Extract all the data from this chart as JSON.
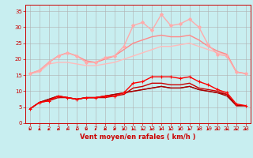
{
  "background_color": "#c8eef0",
  "grid_color": "#b0b0b0",
  "xlabel": "Vent moyen/en rafales ( km/h )",
  "xlabel_color": "#cc0000",
  "xlabel_fontsize": 6.0,
  "tick_color": "#cc0000",
  "tick_fontsize": 5.0,
  "ylim": [
    0,
    37
  ],
  "xlim": [
    -0.5,
    23.5
  ],
  "yticks": [
    0,
    5,
    10,
    15,
    20,
    25,
    30,
    35
  ],
  "xticks": [
    0,
    1,
    2,
    3,
    4,
    5,
    6,
    7,
    8,
    9,
    10,
    11,
    12,
    13,
    14,
    15,
    16,
    17,
    18,
    19,
    20,
    21,
    22,
    23
  ],
  "x": [
    0,
    1,
    2,
    3,
    4,
    5,
    6,
    7,
    8,
    9,
    10,
    11,
    12,
    13,
    14,
    15,
    16,
    17,
    18,
    19,
    20,
    21,
    22,
    23
  ],
  "series": [
    {
      "y": [
        15.5,
        16.0,
        18.5,
        19.0,
        19.0,
        18.5,
        18.0,
        18.0,
        18.5,
        19.0,
        20.0,
        21.0,
        22.0,
        23.0,
        24.0,
        24.0,
        24.5,
        25.0,
        24.0,
        23.0,
        22.0,
        21.5,
        16.0,
        15.5
      ],
      "color": "#ffbbbb",
      "lw": 1.0,
      "marker": null,
      "zorder": 2
    },
    {
      "y": [
        15.5,
        16.5,
        19.0,
        21.0,
        22.0,
        21.0,
        19.0,
        19.0,
        20.5,
        21.0,
        24.0,
        30.5,
        31.5,
        29.0,
        34.0,
        30.5,
        31.0,
        32.5,
        30.0,
        24.5,
        21.5,
        21.0,
        16.0,
        15.5
      ],
      "color": "#ffaaaa",
      "lw": 1.0,
      "marker": "D",
      "markersize": 2.0,
      "zorder": 3
    },
    {
      "y": [
        15.5,
        16.5,
        19.0,
        21.0,
        22.0,
        21.0,
        19.5,
        19.0,
        20.0,
        21.0,
        23.0,
        25.0,
        26.0,
        27.0,
        27.5,
        27.0,
        27.0,
        27.5,
        26.0,
        24.0,
        22.5,
        21.5,
        16.0,
        15.5
      ],
      "color": "#ff8888",
      "lw": 1.0,
      "marker": null,
      "zorder": 2
    },
    {
      "y": [
        4.5,
        6.5,
        7.0,
        8.5,
        8.0,
        7.5,
        8.0,
        8.0,
        8.5,
        8.5,
        9.5,
        12.5,
        13.0,
        14.5,
        14.5,
        14.5,
        14.0,
        14.5,
        13.0,
        12.0,
        10.5,
        9.5,
        6.0,
        5.5
      ],
      "color": "#ff0000",
      "lw": 1.0,
      "marker": "+",
      "markersize": 3.0,
      "zorder": 4
    },
    {
      "y": [
        4.5,
        6.5,
        7.0,
        8.0,
        8.0,
        7.5,
        8.0,
        8.0,
        8.0,
        8.5,
        9.0,
        11.0,
        11.5,
        12.5,
        12.5,
        12.0,
        12.0,
        12.5,
        11.0,
        10.5,
        10.0,
        9.0,
        5.5,
        5.5
      ],
      "color": "#cc0000",
      "lw": 1.0,
      "marker": null,
      "zorder": 3
    },
    {
      "y": [
        4.5,
        6.5,
        7.5,
        8.5,
        8.0,
        7.5,
        8.0,
        8.0,
        8.5,
        9.0,
        9.5,
        10.0,
        10.5,
        11.0,
        11.5,
        11.0,
        11.0,
        11.5,
        10.5,
        10.0,
        9.5,
        8.5,
        5.5,
        5.5
      ],
      "color": "#aa0000",
      "lw": 1.0,
      "marker": null,
      "zorder": 3
    },
    {
      "y": [
        4.5,
        6.5,
        7.5,
        8.5,
        8.0,
        7.5,
        8.0,
        8.0,
        8.5,
        9.0,
        9.5,
        10.0,
        10.5,
        11.0,
        11.5,
        11.0,
        11.0,
        11.5,
        10.5,
        10.0,
        9.5,
        9.0,
        5.5,
        5.5
      ],
      "color": "#880000",
      "lw": 0.8,
      "marker": null,
      "zorder": 2
    }
  ],
  "arrow_color": "#cc0000",
  "hline_color": "#cc0000",
  "hline_y": 0
}
